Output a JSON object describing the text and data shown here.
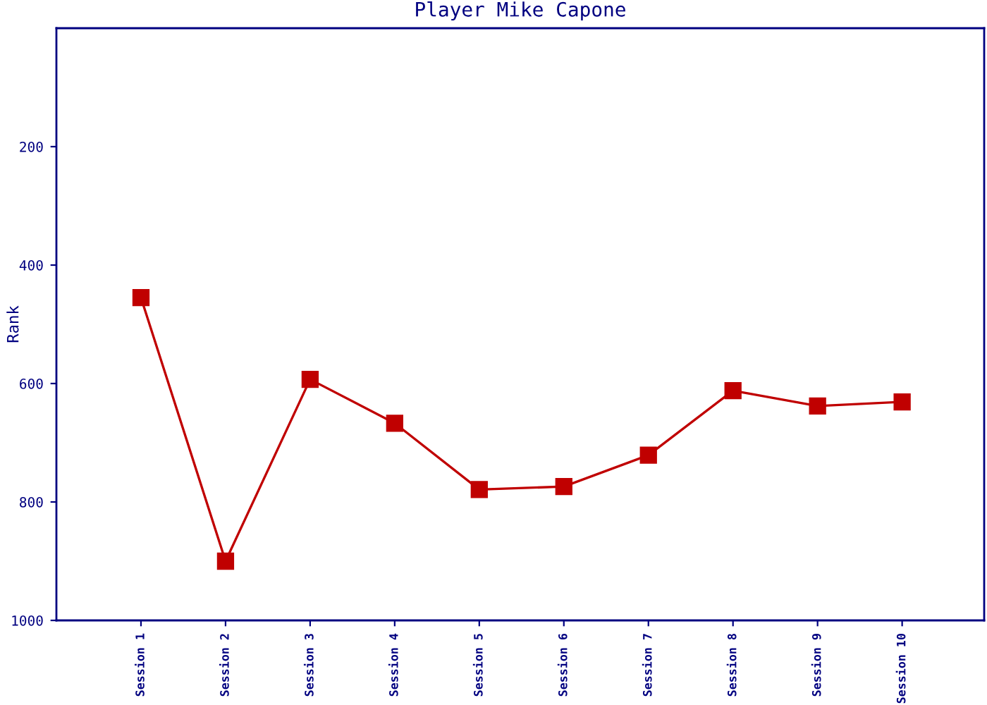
{
  "chart_data": {
    "type": "line",
    "title": "Player Mike Capone",
    "ylabel": "Rank",
    "categories": [
      "Session 1",
      "Session 2",
      "Session 3",
      "Session 4",
      "Session 5",
      "Session 6",
      "Session 7",
      "Session 8",
      "Session 9",
      "Session 10"
    ],
    "series": [
      {
        "color": "#c00000",
        "values": [
          455,
          900,
          593,
          667,
          779,
          774,
          721,
          612,
          638,
          631
        ]
      }
    ],
    "ylim": [
      1000,
      0
    ],
    "yticks": [
      200,
      400,
      600,
      800,
      1000
    ],
    "grid": false,
    "marker": "square",
    "line_style": "solid"
  }
}
